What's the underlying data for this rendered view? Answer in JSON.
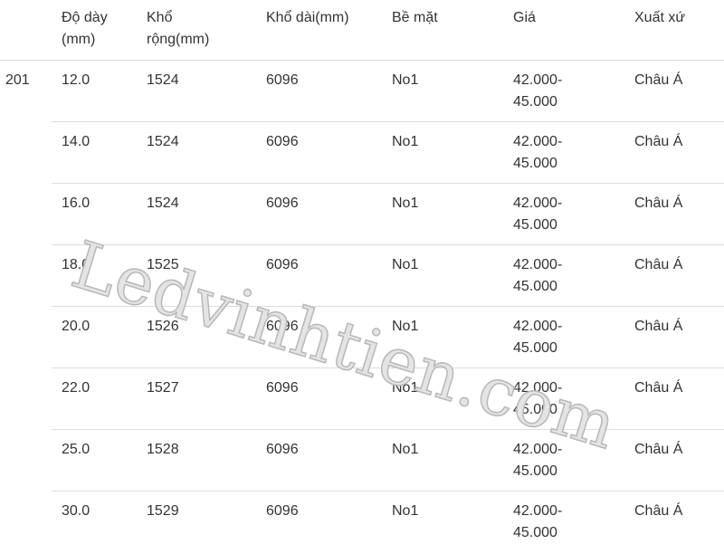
{
  "headers": [
    "",
    "Độ dày (mm)",
    "Khổ rộng(mm)",
    "Khổ dài(mm)",
    "Bề mặt",
    "Giá",
    "Xuất xứ"
  ],
  "header_lines": [
    [
      "",
      ""
    ],
    [
      "Độ dày",
      "(mm)"
    ],
    [
      "Khổ",
      "rộng(mm)"
    ],
    [
      "Khổ dài(mm)",
      ""
    ],
    [
      "Bề mặt",
      ""
    ],
    [
      "Giá",
      ""
    ],
    [
      "Xuất xứ",
      ""
    ]
  ],
  "grade": "201",
  "rows": [
    {
      "thickness": "12.0",
      "width": "1524",
      "length": "6096",
      "surface": "No1",
      "price_1": "42.000-",
      "price_2": "45.000",
      "origin": "Châu Á"
    },
    {
      "thickness": "14.0",
      "width": "1524",
      "length": "6096",
      "surface": "No1",
      "price_1": "42.000-",
      "price_2": "45.000",
      "origin": "Châu Á"
    },
    {
      "thickness": "16.0",
      "width": "1524",
      "length": "6096",
      "surface": "No1",
      "price_1": "42.000-",
      "price_2": "45.000",
      "origin": "Châu Á"
    },
    {
      "thickness": "18.0",
      "width": "1525",
      "length": "6096",
      "surface": "No1",
      "price_1": "42.000-",
      "price_2": "45.000",
      "origin": "Châu Á"
    },
    {
      "thickness": "20.0",
      "width": "1526",
      "length": "6096",
      "surface": "No1",
      "price_1": "42.000-",
      "price_2": "45.000",
      "origin": "Châu Á"
    },
    {
      "thickness": "22.0",
      "width": "1527",
      "length": "6096",
      "surface": "No1",
      "price_1": "42.000-",
      "price_2": "45.000",
      "origin": "Châu Á"
    },
    {
      "thickness": "25.0",
      "width": "1528",
      "length": "6096",
      "surface": "No1",
      "price_1": "42.000-",
      "price_2": "45.000",
      "origin": "Châu Á"
    },
    {
      "thickness": "30.0",
      "width": "1529",
      "length": "6096",
      "surface": "No1",
      "price_1": "42.000-",
      "price_2": "45.000",
      "origin": "Châu Á"
    }
  ],
  "watermark": "Ledvinhtien.com"
}
